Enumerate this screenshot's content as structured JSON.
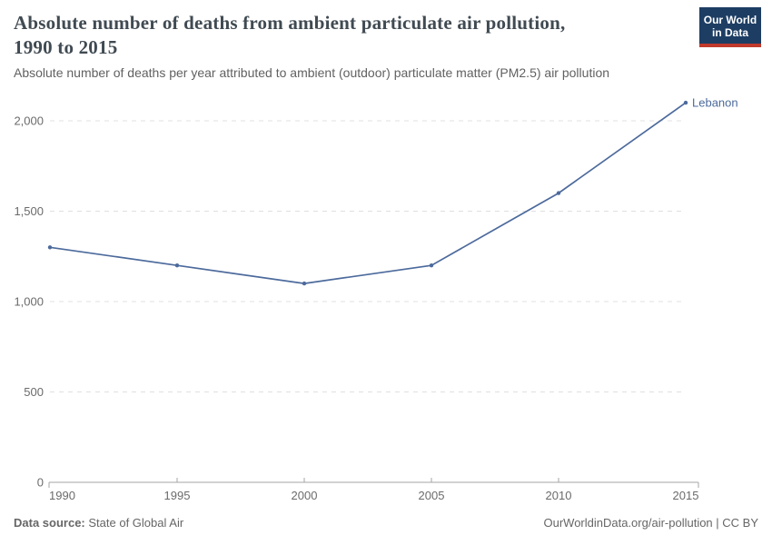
{
  "header": {
    "title_line1": "Absolute number of deaths from ambient particulate air pollution,",
    "title_line2": "1990 to 2015",
    "subtitle": "Absolute number of deaths per year attributed to ambient (outdoor) particulate matter (PM2.5) air pollution"
  },
  "logo": {
    "line1": "Our World",
    "line2": "in Data",
    "bg_color": "#1d3d63",
    "stripe_color": "#c0392b"
  },
  "chart_data": {
    "type": "line",
    "title": "Absolute number of deaths from ambient particulate air pollution, 1990 to 2015",
    "subtitle": "Absolute number of deaths per year attributed to ambient (outdoor) particulate matter (PM2.5) air pollution",
    "x": [
      1990,
      1995,
      2000,
      2005,
      2010,
      2015
    ],
    "xtick_labels": [
      "1990",
      "1995",
      "2000",
      "2005",
      "2010",
      "2015"
    ],
    "series": [
      {
        "name": "Lebanon",
        "color": "#4C6A9C",
        "values": [
          1300,
          1200,
          1100,
          1200,
          1600,
          2100
        ]
      }
    ],
    "ylim": [
      0,
      2000
    ],
    "yticks": [
      0,
      500,
      1000,
      1500,
      2000
    ],
    "ytick_labels": [
      "0",
      "500",
      "1,000",
      "1,500",
      "2,000"
    ],
    "xlabel": "",
    "ylabel": "",
    "grid": "horizontal-dashed",
    "legend_position": "end-of-line-label"
  },
  "footer": {
    "source_label": "Data source:",
    "source_value": "State of Global Air",
    "link": "OurWorldinData.org/air-pollution | CC BY"
  }
}
